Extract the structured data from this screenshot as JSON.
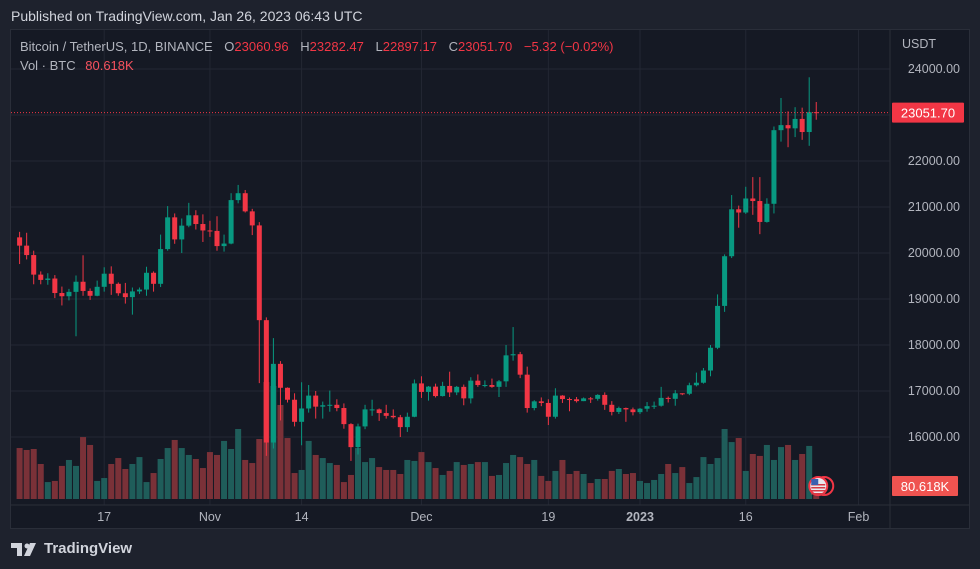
{
  "published": "Published on TradingView.com, Jan 26, 2023 06:43 UTC",
  "legend": {
    "symbol": "Bitcoin / TetherUS, 1D, BINANCE",
    "o_label": "O",
    "o": "23060.96",
    "h_label": "H",
    "h": "23282.47",
    "l_label": "L",
    "l": "22897.17",
    "c_label": "C",
    "c": "23051.70",
    "change": "−5.32 (−0.02%)",
    "vol_label": "Vol · BTC",
    "vol": "80.618K"
  },
  "axis": {
    "currency": "USDT",
    "last_price": "23051.70",
    "last_volume": "80.618K",
    "price_ticks": [
      "16000.00",
      "17000.00",
      "18000.00",
      "19000.00",
      "20000.00",
      "21000.00",
      "22000.00",
      "23000.00",
      "24000.00"
    ]
  },
  "footer": {
    "brand": "TradingView"
  },
  "colors": {
    "up": "#089981",
    "down": "#f23645",
    "up_vol": "#1f5d5a",
    "down_vol": "#7a3138",
    "grid": "#232733"
  },
  "chart_data": {
    "type": "candlestick",
    "interval": "1D",
    "start_date": "2022-10-05",
    "end_date": "2023-01-26",
    "ylim": [
      15400,
      24800
    ],
    "time_ticks": [
      {
        "label": "17",
        "date": "2022-10-17"
      },
      {
        "label": "Nov",
        "date": "2022-11-01"
      },
      {
        "label": "14",
        "date": "2022-11-14"
      },
      {
        "label": "Dec",
        "date": "2022-12-01"
      },
      {
        "label": "19",
        "date": "2022-12-19"
      },
      {
        "label": "2023",
        "date": "2023-01-01"
      },
      {
        "label": "16",
        "date": "2023-01-16"
      },
      {
        "label": "Feb",
        "date": "2023-02-01"
      }
    ],
    "close": [
      20160,
      19955,
      19530,
      19415,
      19445,
      19130,
      19060,
      19155,
      19375,
      19175,
      19070,
      19265,
      19550,
      19330,
      19125,
      19040,
      19165,
      19205,
      19570,
      19330,
      20085,
      20775,
      20295,
      20595,
      20820,
      20630,
      20490,
      20480,
      20150,
      20205,
      21150,
      21300,
      20905,
      20600,
      18540,
      15880,
      17590,
      17070,
      16810,
      16330,
      16620,
      16900,
      16660,
      16690,
      16700,
      16630,
      16280,
      15780,
      16230,
      16600,
      16600,
      16520,
      16460,
      16430,
      16215,
      16440,
      17165,
      16980,
      17095,
      16890,
      17110,
      16970,
      17090,
      16840,
      17225,
      17130,
      17130,
      17090,
      17210,
      17775,
      17800,
      17355,
      16630,
      16775,
      16740,
      16440,
      16900,
      16825,
      16820,
      16780,
      16840,
      16830,
      16915,
      16700,
      16545,
      16630,
      16600,
      16540,
      16615,
      16670,
      16680,
      16850,
      16830,
      16950,
      16940,
      17125,
      17180,
      17445,
      17940,
      18850,
      19930,
      20950,
      20880,
      21185,
      21130,
      20675,
      21070,
      22670,
      22780,
      22710,
      22915,
      22630,
      23060,
      23051.7
    ],
    "open_first": 20340,
    "open_last": 23060.96,
    "high": [
      20460,
      20440,
      20050,
      19600,
      19560,
      19520,
      19270,
      19220,
      19510,
      19950,
      19230,
      19400,
      19690,
      19710,
      19360,
      19350,
      19250,
      19250,
      19700,
      19600,
      20400,
      21020,
      20860,
      20750,
      21090,
      20930,
      20840,
      20700,
      20800,
      20400,
      21300,
      21480,
      21370,
      20960,
      20670,
      18600,
      18150,
      17650,
      17080,
      16950,
      17190,
      17130,
      17000,
      16770,
      17010,
      16820,
      16730,
      16300,
      16290,
      16700,
      16810,
      16620,
      16700,
      16600,
      16480,
      16530,
      17250,
      17320,
      17110,
      17160,
      17200,
      17420,
      17110,
      17140,
      17300,
      17360,
      17230,
      17270,
      17240,
      18000,
      18390,
      17850,
      17530,
      16800,
      16860,
      16820,
      17060,
      16910,
      16860,
      16870,
      16860,
      16870,
      16930,
      16970,
      16780,
      16660,
      16640,
      16640,
      16630,
      16760,
      16770,
      17090,
      16880,
      17020,
      16950,
      17180,
      17400,
      17500,
      18000,
      19100,
      19970,
      21260,
      21030,
      21440,
      21650,
      21650,
      21190,
      22750,
      23370,
      23080,
      23170,
      23160,
      23820,
      23282.47
    ],
    "low": [
      19760,
      19860,
      19320,
      19320,
      19310,
      19020,
      18860,
      18970,
      18190,
      19070,
      18980,
      19060,
      19160,
      19090,
      19070,
      18900,
      18660,
      19110,
      19070,
      19160,
      19260,
      20050,
      20200,
      20000,
      20560,
      20510,
      20240,
      20350,
      20050,
      20030,
      20190,
      21080,
      20880,
      20390,
      17170,
      15590,
      15750,
      16360,
      16750,
      16230,
      15820,
      16530,
      16400,
      16400,
      16550,
      16560,
      16180,
      15480,
      15620,
      16170,
      16460,
      16350,
      16400,
      16400,
      16000,
      16110,
      16430,
      16850,
      16790,
      16860,
      16880,
      16870,
      16910,
      16690,
      16730,
      17090,
      17080,
      17070,
      16870,
      17090,
      17660,
      17280,
      16530,
      16580,
      16670,
      16260,
      16400,
      16740,
      16560,
      16750,
      16780,
      16740,
      16790,
      16590,
      16470,
      16500,
      16330,
      16470,
      16500,
      16550,
      16610,
      16660,
      16750,
      16680,
      16910,
      16910,
      17100,
      17160,
      17320,
      17910,
      18720,
      19890,
      20550,
      20850,
      20830,
      20410,
      20660,
      20860,
      22420,
      22300,
      22520,
      22460,
      22330,
      22897.17
    ],
    "volume_k": [
      316,
      304,
      310,
      217,
      105,
      112,
      205,
      242,
      205,
      384,
      335,
      112,
      130,
      217,
      254,
      186,
      217,
      260,
      105,
      161,
      248,
      316,
      366,
      316,
      273,
      248,
      192,
      291,
      273,
      360,
      310,
      434,
      242,
      223,
      372,
      725,
      701,
      583,
      378,
      161,
      180,
      360,
      273,
      254,
      223,
      211,
      105,
      149,
      316,
      229,
      254,
      198,
      180,
      180,
      155,
      242,
      236,
      291,
      229,
      192,
      149,
      174,
      229,
      211,
      217,
      229,
      229,
      143,
      149,
      223,
      273,
      260,
      217,
      242,
      143,
      112,
      174,
      242,
      155,
      174,
      155,
      99,
      124,
      124,
      174,
      186,
      155,
      161,
      112,
      99,
      118,
      155,
      217,
      161,
      198,
      99,
      136,
      260,
      217,
      254,
      434,
      353,
      378,
      174,
      279,
      267,
      335,
      242,
      322,
      335,
      242,
      279,
      329,
      80.618
    ]
  }
}
